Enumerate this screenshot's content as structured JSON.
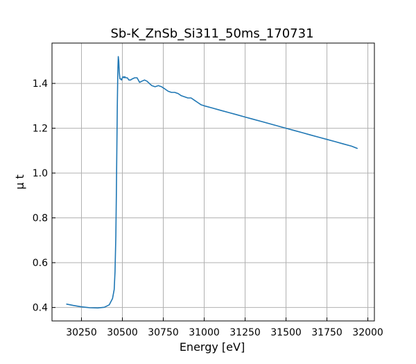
{
  "chart_data": {
    "type": "line",
    "title": "Sb-K_ZnSb_Si311_50ms_170731",
    "xlabel": "Energy [eV]",
    "ylabel": "μ t",
    "xlim": [
      30070,
      32040
    ],
    "ylim": [
      0.34,
      1.58
    ],
    "xticks": [
      30250,
      30500,
      30750,
      31000,
      31250,
      31500,
      31750,
      32000
    ],
    "xtick_labels": [
      "30250",
      "30500",
      "30750",
      "31000",
      "31250",
      "31500",
      "31750",
      "32000"
    ],
    "yticks": [
      0.4,
      0.6,
      0.8,
      1.0,
      1.2,
      1.4
    ],
    "ytick_labels": [
      "0.4",
      "0.6",
      "0.8",
      "1.0",
      "1.2",
      "1.4"
    ],
    "grid": true,
    "legend": "none",
    "series_color": "#1f77b4",
    "series": [
      {
        "x": [
          30160,
          30200,
          30250,
          30300,
          30350,
          30390,
          30420,
          30440,
          30450,
          30455,
          30460,
          30463,
          30466,
          30469,
          30472,
          30475,
          30478,
          30481,
          30485,
          30490,
          30495,
          30500,
          30505,
          30510,
          30515,
          30520,
          30525,
          30530,
          30540,
          30550,
          30560,
          30575,
          30590,
          30605,
          30620,
          30635,
          30650,
          30665,
          30680,
          30700,
          30720,
          30740,
          30760,
          30780,
          30800,
          30820,
          30840,
          30860,
          30880,
          30900,
          30920,
          30940,
          30960,
          30980,
          31000,
          31050,
          31100,
          31150,
          31200,
          31250,
          31300,
          31350,
          31400,
          31450,
          31500,
          31550,
          31600,
          31650,
          31700,
          31750,
          31800,
          31850,
          31900,
          31935
        ],
        "y": [
          0.415,
          0.409,
          0.403,
          0.399,
          0.398,
          0.401,
          0.412,
          0.44,
          0.48,
          0.56,
          0.72,
          0.9,
          1.1,
          1.3,
          1.45,
          1.52,
          1.5,
          1.45,
          1.42,
          1.42,
          1.415,
          1.425,
          1.43,
          1.425,
          1.43,
          1.425,
          1.425,
          1.425,
          1.415,
          1.415,
          1.42,
          1.425,
          1.425,
          1.405,
          1.41,
          1.415,
          1.41,
          1.4,
          1.39,
          1.385,
          1.39,
          1.385,
          1.375,
          1.365,
          1.36,
          1.36,
          1.355,
          1.345,
          1.34,
          1.335,
          1.335,
          1.325,
          1.315,
          1.305,
          1.3,
          1.29,
          1.28,
          1.27,
          1.26,
          1.25,
          1.24,
          1.23,
          1.22,
          1.21,
          1.2,
          1.19,
          1.18,
          1.17,
          1.16,
          1.15,
          1.14,
          1.13,
          1.12,
          1.11
        ]
      }
    ]
  }
}
